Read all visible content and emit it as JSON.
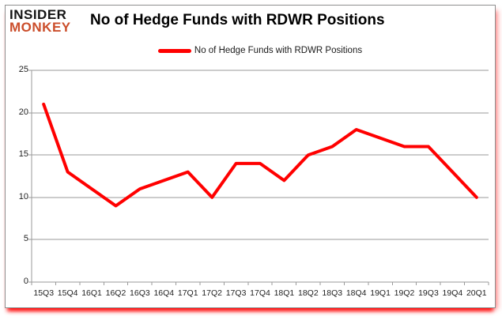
{
  "logo": {
    "line1": "INSIDER",
    "line2": "MONKEY"
  },
  "header": {
    "title": "No of Hedge Funds with RDWR Positions"
  },
  "legend": {
    "label": "No of Hedge Funds with RDWR Positions"
  },
  "chart_data": {
    "type": "line",
    "title": "No of Hedge Funds with RDWR Positions",
    "categories": [
      "15Q3",
      "15Q4",
      "16Q1",
      "16Q2",
      "16Q3",
      "16Q4",
      "17Q1",
      "17Q2",
      "17Q3",
      "17Q4",
      "18Q1",
      "18Q2",
      "18Q3",
      "18Q4",
      "19Q1",
      "19Q2",
      "19Q3",
      "19Q4",
      "20Q1"
    ],
    "series": [
      {
        "name": "No of Hedge Funds with RDWR Positions",
        "values": [
          21,
          13,
          11,
          9,
          11,
          12,
          13,
          10,
          14,
          14,
          12,
          15,
          16,
          18,
          17,
          16,
          16,
          13,
          10
        ]
      }
    ],
    "xlabel": "",
    "ylabel": "",
    "ylim": [
      0,
      25
    ],
    "yticks": [
      0,
      5,
      10,
      15,
      20,
      25
    ],
    "grid": true,
    "legend_position": "top-center"
  },
  "colors": {
    "line": "#FF0000",
    "grid": "#9a9a9a",
    "axis": "#9a9a9a",
    "frame_border": "#8e8e8e",
    "shadow": "#FF0000",
    "text": "#1f1f1f",
    "title_text": "#000000",
    "logo_black": "#141414",
    "logo_orange": "#cb4e2b"
  }
}
